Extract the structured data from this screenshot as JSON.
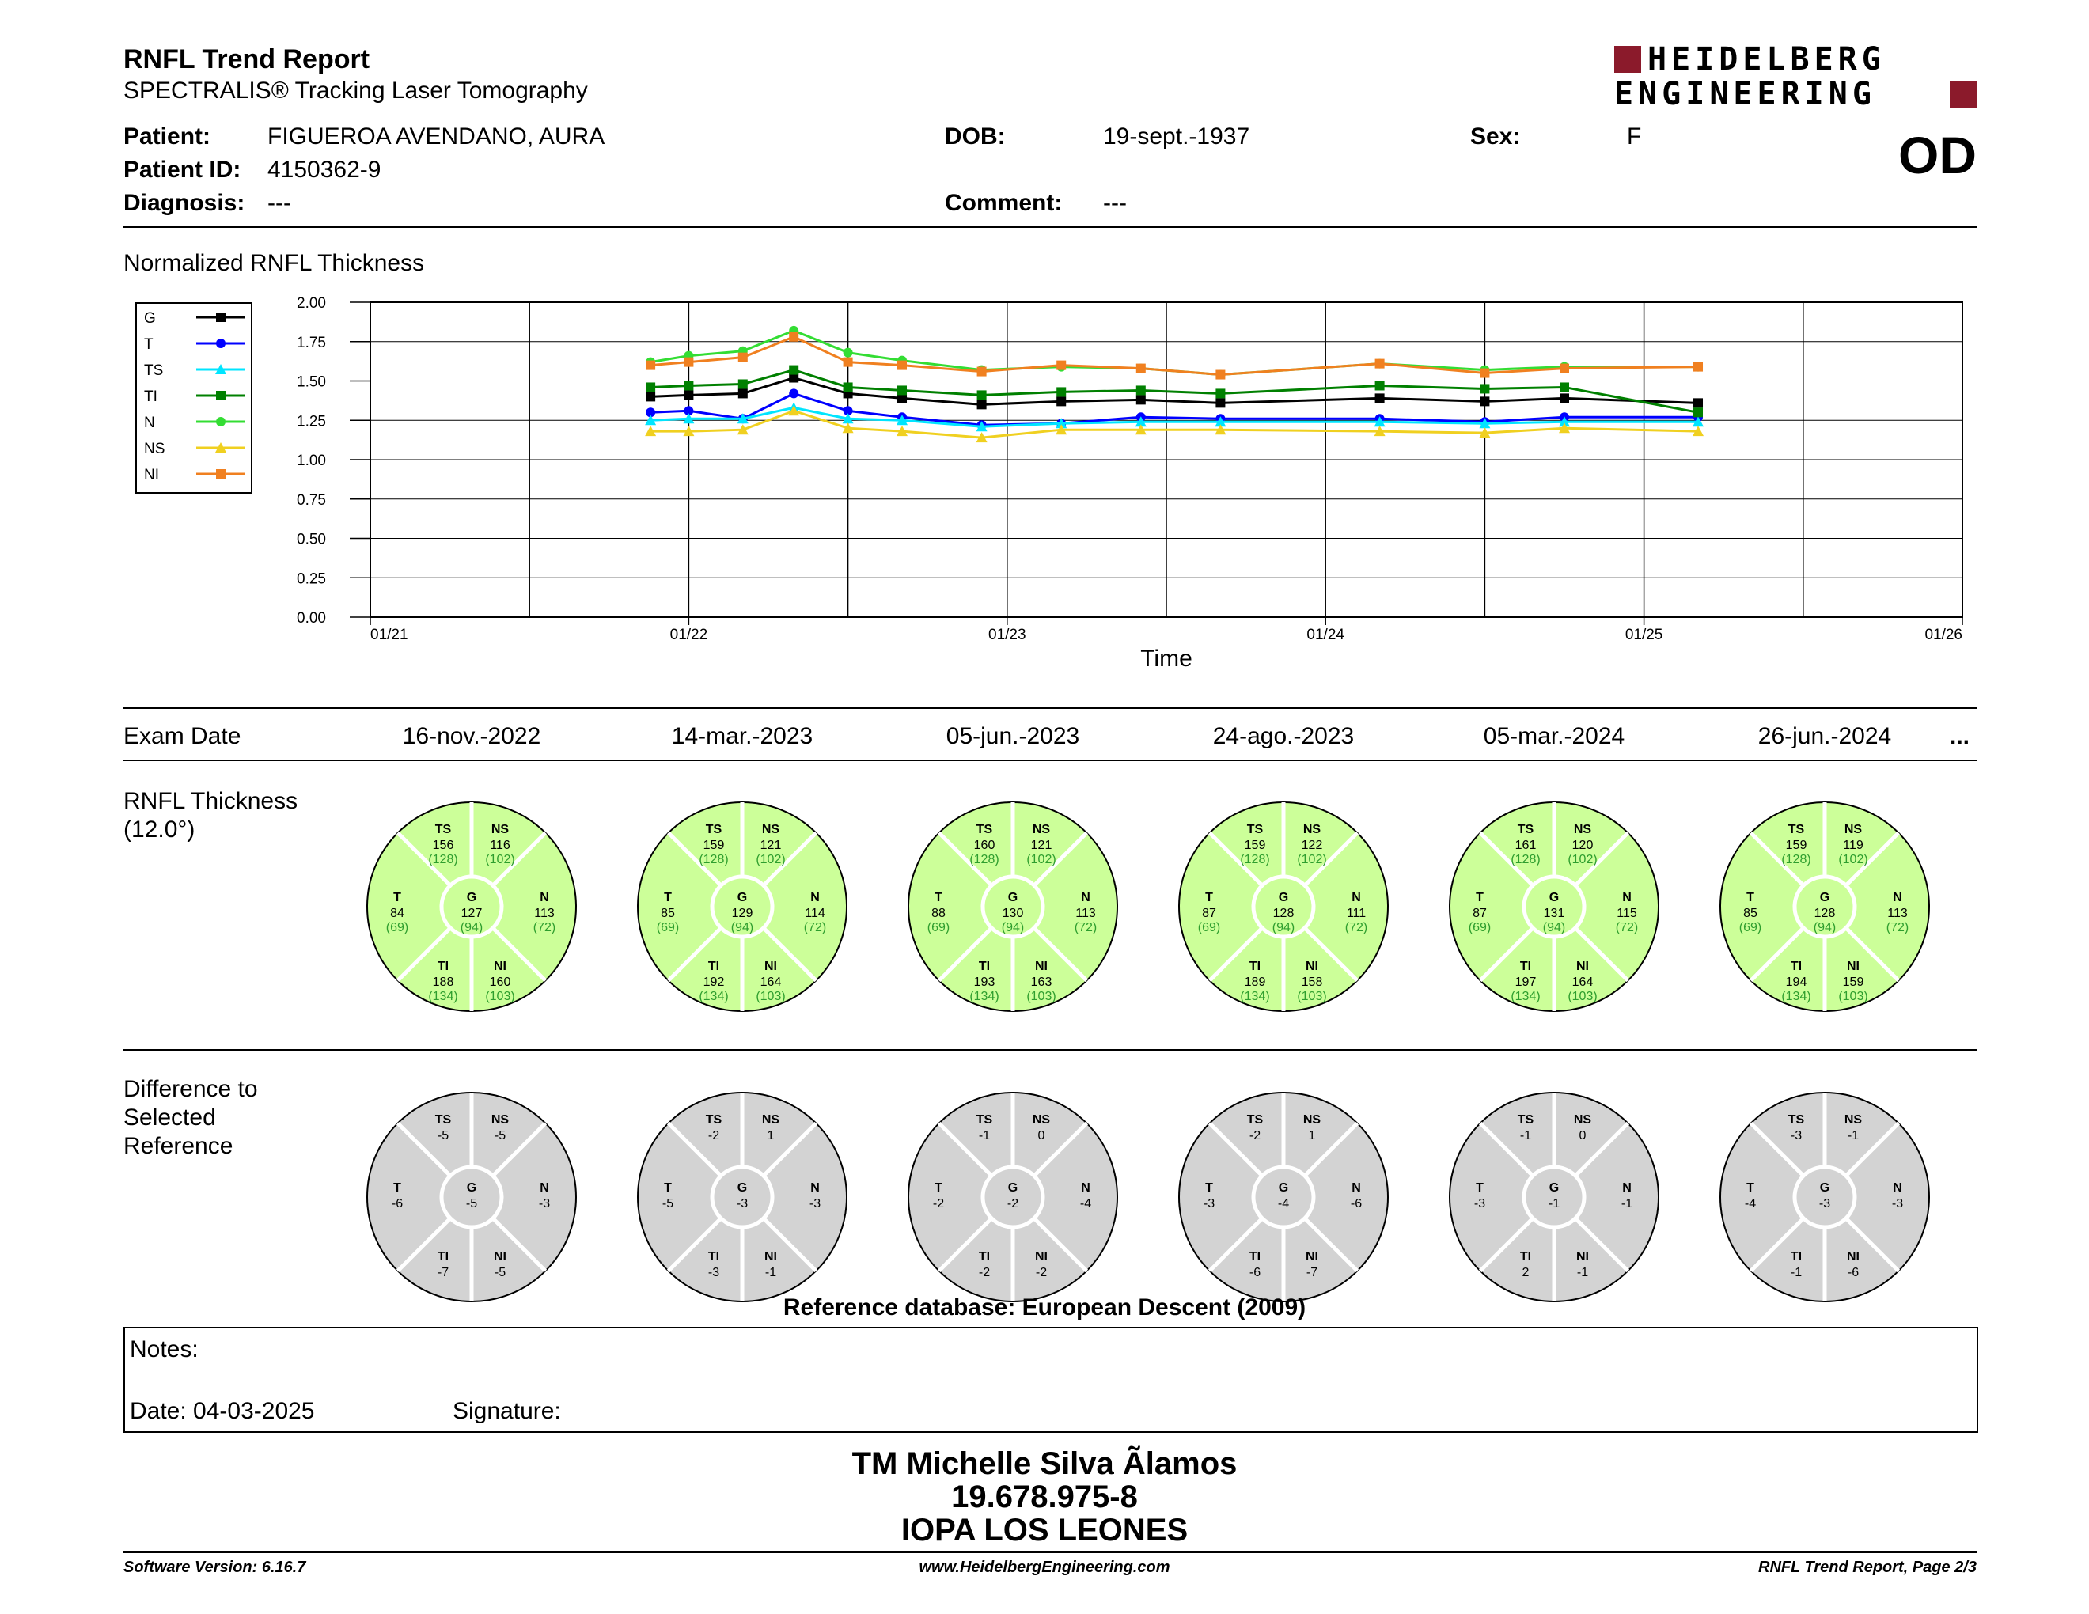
{
  "header": {
    "title": "RNFL Trend Report",
    "subtitle": "SPECTRALIS® Tracking Laser Tomography",
    "logo_line1": "HEIDELBERG",
    "logo_line2": "ENGINEERING",
    "logo_color": "#8b1a2b",
    "eye": "OD"
  },
  "patient": {
    "name_label": "Patient:",
    "name": "FIGUEROA AVENDANO, AURA",
    "id_label": "Patient ID:",
    "id": "4150362-9",
    "diagnosis_label": "Diagnosis:",
    "diagnosis": "---",
    "dob_label": "DOB:",
    "dob": "19-sept.-1937",
    "comment_label": "Comment:",
    "comment": "---",
    "sex_label": "Sex:",
    "sex": "F"
  },
  "chart_data": {
    "type": "line",
    "title": "Normalized RNFL Thickness",
    "xlabel": "Time",
    "ylabel": "",
    "ylim": [
      0,
      2
    ],
    "yticks": [
      "0.00",
      "0.25",
      "0.50",
      "0.75",
      "1.00",
      "1.25",
      "1.50",
      "1.75",
      "2.00"
    ],
    "xticks": [
      "01/21",
      "01/22",
      "01/23",
      "01/24",
      "01/25",
      "01/26"
    ],
    "xrange": [
      2021.0,
      2026.0
    ],
    "x": [
      2021.88,
      2022.0,
      2022.17,
      2022.33,
      2022.5,
      2022.67,
      2022.92,
      2023.17,
      2023.42,
      2023.67,
      2024.17,
      2024.5,
      2024.75,
      2025.17
    ],
    "legend_position": "top-left",
    "series": [
      {
        "name": "G",
        "color": "#000000",
        "marker": "square",
        "values": [
          1.4,
          1.41,
          1.42,
          1.52,
          1.42,
          1.39,
          1.35,
          1.37,
          1.38,
          1.36,
          1.39,
          1.37,
          1.39,
          1.36
        ]
      },
      {
        "name": "T",
        "color": "#0000ff",
        "marker": "circle",
        "values": [
          1.3,
          1.31,
          1.26,
          1.42,
          1.31,
          1.27,
          1.22,
          1.23,
          1.27,
          1.26,
          1.26,
          1.24,
          1.27,
          1.27
        ]
      },
      {
        "name": "TS",
        "color": "#00e5ff",
        "marker": "triangle",
        "values": [
          1.25,
          1.26,
          1.26,
          1.33,
          1.26,
          1.25,
          1.21,
          1.23,
          1.24,
          1.24,
          1.24,
          1.23,
          1.24,
          1.24
        ]
      },
      {
        "name": "TI",
        "color": "#008000",
        "marker": "square",
        "values": [
          1.46,
          1.47,
          1.48,
          1.57,
          1.46,
          1.44,
          1.41,
          1.43,
          1.44,
          1.42,
          1.47,
          1.45,
          1.46,
          1.3
        ]
      },
      {
        "name": "N",
        "color": "#33dd33",
        "marker": "circle",
        "values": [
          1.62,
          1.66,
          1.69,
          1.82,
          1.68,
          1.63,
          1.57,
          1.59,
          1.58,
          1.54,
          1.61,
          1.57,
          1.59,
          1.59
        ]
      },
      {
        "name": "NS",
        "color": "#f0d020",
        "marker": "triangle",
        "values": [
          1.18,
          1.18,
          1.19,
          1.31,
          1.2,
          1.18,
          1.14,
          1.19,
          1.19,
          1.19,
          1.18,
          1.17,
          1.2,
          1.18
        ]
      },
      {
        "name": "NI",
        "color": "#f08020",
        "marker": "square",
        "values": [
          1.6,
          1.62,
          1.65,
          1.78,
          1.62,
          1.6,
          1.56,
          1.6,
          1.58,
          1.54,
          1.61,
          1.55,
          1.58,
          1.59
        ]
      }
    ]
  },
  "exam_row": {
    "label": "Exam Date",
    "dates": [
      "16-nov.-2022",
      "14-mar.-2023",
      "05-jun.-2023",
      "24-ago.-2023",
      "05-mar.-2024",
      "26-jun.-2024"
    ],
    "more": "..."
  },
  "thickness": {
    "label_line1": "RNFL Thickness",
    "label_line2": "(12.0°)",
    "fill_color": "#ccff99",
    "ref_color": "#2e9e2e",
    "exams": [
      {
        "TS": "156",
        "NS": "116",
        "T": "84",
        "G": "127",
        "N": "113",
        "TI": "188",
        "NI": "160"
      },
      {
        "TS": "159",
        "NS": "121",
        "T": "85",
        "G": "129",
        "N": "114",
        "TI": "192",
        "NI": "164"
      },
      {
        "TS": "160",
        "NS": "121",
        "T": "88",
        "G": "130",
        "N": "113",
        "TI": "193",
        "NI": "163"
      },
      {
        "TS": "159",
        "NS": "122",
        "T": "87",
        "G": "128",
        "N": "111",
        "TI": "189",
        "NI": "158"
      },
      {
        "TS": "161",
        "NS": "120",
        "T": "87",
        "G": "131",
        "N": "115",
        "TI": "197",
        "NI": "164"
      },
      {
        "TS": "159",
        "NS": "119",
        "T": "85",
        "G": "128",
        "N": "113",
        "TI": "194",
        "NI": "159"
      }
    ],
    "reference": {
      "TS": "(128)",
      "NS": "(102)",
      "T": "(69)",
      "G": "(94)",
      "N": "(72)",
      "TI": "(134)",
      "NI": "(103)"
    }
  },
  "difference": {
    "label_line1": "Difference to",
    "label_line2": "Selected",
    "label_line3": "Reference",
    "fill_color": "#d3d3d3",
    "exams": [
      {
        "TS": "-5",
        "NS": "-5",
        "T": "-6",
        "G": "-5",
        "N": "-3",
        "TI": "-7",
        "NI": "-5"
      },
      {
        "TS": "-2",
        "NS": "1",
        "T": "-5",
        "G": "-3",
        "N": "-3",
        "TI": "-3",
        "NI": "-1"
      },
      {
        "TS": "-1",
        "NS": "0",
        "T": "-2",
        "G": "-2",
        "N": "-4",
        "TI": "-2",
        "NI": "-2"
      },
      {
        "TS": "-2",
        "NS": "1",
        "T": "-3",
        "G": "-4",
        "N": "-6",
        "TI": "-6",
        "NI": "-7"
      },
      {
        "TS": "-1",
        "NS": "0",
        "T": "-3",
        "G": "-1",
        "N": "-1",
        "TI": "2",
        "NI": "-1"
      },
      {
        "TS": "-3",
        "NS": "-1",
        "T": "-4",
        "G": "-3",
        "N": "-3",
        "TI": "-1",
        "NI": "-6"
      }
    ]
  },
  "reference_db": "Reference database: European Descent (2009)",
  "notes": {
    "label": "Notes:",
    "date_label": "Date: 04-03-2025",
    "signature_label": "Signature:"
  },
  "signature_block": {
    "line1": "TM Michelle Silva Ãlamos",
    "line2": "19.678.975-8",
    "line3": "IOPA LOS LEONES"
  },
  "footer": {
    "software": "Software Version: 6.16.7",
    "website": "www.HeidelbergEngineering.com",
    "page": "RNFL Trend Report, Page 2/3"
  }
}
